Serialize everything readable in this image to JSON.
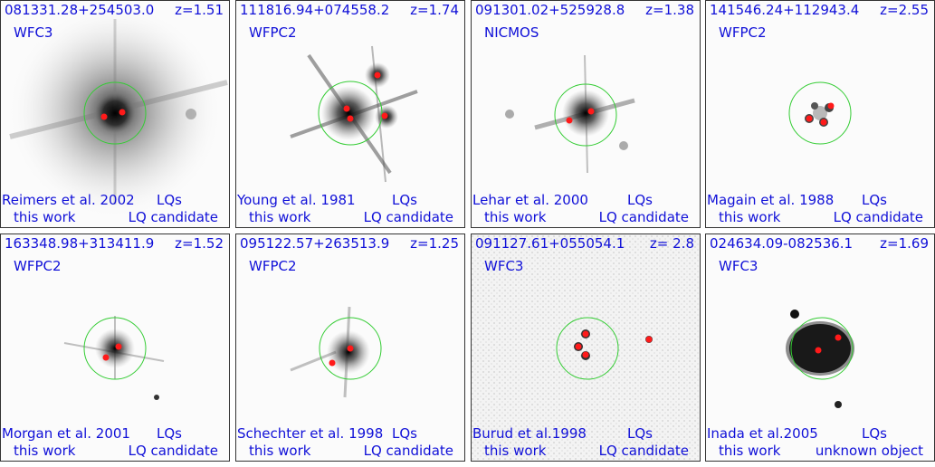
{
  "panels": [
    {
      "name": "081331.28+254503.0",
      "z": "z=1.51",
      "instrument": "WFC3",
      "reference": "Reimers et al. 2002",
      "lq_label": "LQs",
      "this_work": "this work",
      "status": "LQ candidate"
    },
    {
      "name": "111816.94+074558.2",
      "z": "z=1.74",
      "instrument": "WFPC2",
      "reference": "Young et al. 1981",
      "lq_label": "LQs",
      "this_work": "this work",
      "status": "LQ candidate"
    },
    {
      "name": "091301.02+525928.8",
      "z": "z=1.38",
      "instrument": "NICMOS",
      "reference": "Lehar et al. 2000",
      "lq_label": "LQs",
      "this_work": "this work",
      "status": "LQ candidate"
    },
    {
      "name": "141546.24+112943.4",
      "z": "z=2.55",
      "instrument": "WFPC2",
      "reference": "Magain et al. 1988",
      "lq_label": "LQs",
      "this_work": "this work",
      "status": "LQ candidate"
    },
    {
      "name": "163348.98+313411.9",
      "z": "z=1.52",
      "instrument": "WFPC2",
      "reference": "Morgan et al. 2001",
      "lq_label": "LQs",
      "this_work": "this work",
      "status": "LQ candidate"
    },
    {
      "name": "095122.57+263513.9",
      "z": "z=1.25",
      "instrument": "WFPC2",
      "reference": "Schechter et al. 1998",
      "lq_label": "LQs",
      "this_work": "this work",
      "status": "LQ candidate"
    },
    {
      "name": "091127.61+055054.1",
      "z": "z= 2.8",
      "instrument": "WFC3",
      "reference": "Burud et al.1998",
      "lq_label": "LQs",
      "this_work": "this work",
      "status": "LQ candidate"
    },
    {
      "name": "024634.09-082536.1",
      "z": "z=1.69",
      "instrument": "WFC3",
      "reference": "Inada et al.2005",
      "lq_label": "LQs",
      "this_work": "this work",
      "status": "unknown object"
    }
  ],
  "colors": {
    "text": "#1010d8",
    "circle": "#33cc33",
    "marker": "#ff1a1a"
  }
}
